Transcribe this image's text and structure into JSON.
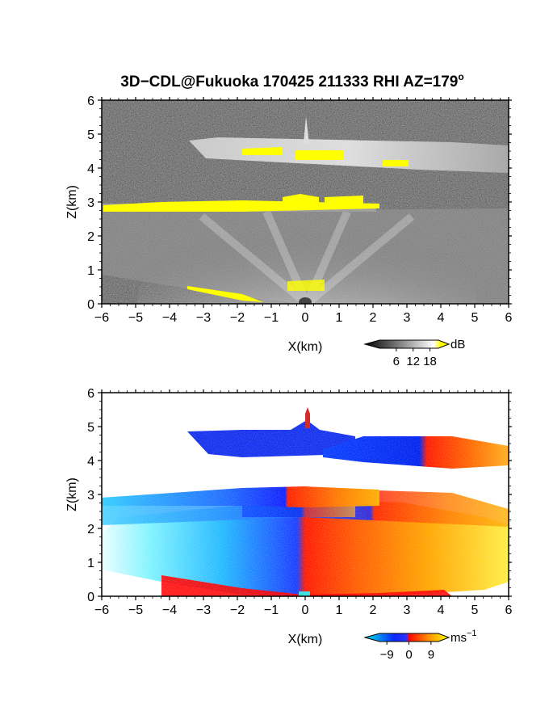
{
  "title": {
    "main": "3D−CDL@Fukuoka 170425 211333 RHI AZ=179",
    "degree": "o"
  },
  "chart_data": [
    {
      "type": "heatmap",
      "panel": "top",
      "xlabel": "X(km)",
      "ylabel": "Z(km)",
      "xlim": [
        -6,
        6
      ],
      "ylim": [
        0,
        6
      ],
      "x_ticks": [
        "−6",
        "−5",
        "−4",
        "−3",
        "−2",
        "−1",
        "0",
        "1",
        "2",
        "3",
        "4",
        "5",
        "6"
      ],
      "y_ticks": [
        "0",
        "1",
        "2",
        "3",
        "4",
        "5",
        "6"
      ],
      "colorbar": {
        "unit": "dB",
        "ticks": [
          "6",
          "12",
          "18"
        ],
        "range": [
          0,
          21
        ],
        "colors": [
          "#000000",
          "#ffffff",
          "#ffff00"
        ]
      },
      "layers": [
        {
          "x": [
            -3.4,
            3.2
          ],
          "z": [
            4.05,
            4.85
          ],
          "level_db": 12
        },
        {
          "x": [
            -6,
            2.1
          ],
          "z": [
            2.7,
            3.05
          ],
          "level_db": 19
        },
        {
          "x": [
            -6,
            6
          ],
          "z": [
            0.3,
            2.5
          ],
          "level_db": 9
        }
      ],
      "grid": false
    },
    {
      "type": "heatmap",
      "panel": "bottom",
      "xlabel": "X(km)",
      "ylabel": "Z(km)",
      "xlim": [
        -6,
        6
      ],
      "ylim": [
        0,
        6
      ],
      "x_ticks": [
        "−6",
        "−5",
        "−4",
        "−3",
        "−2",
        "−1",
        "0",
        "1",
        "2",
        "3",
        "4",
        "5",
        "6"
      ],
      "y_ticks": [
        "0",
        "1",
        "2",
        "3",
        "4",
        "5",
        "6"
      ],
      "colorbar": {
        "unit": "ms",
        "unit_exp": "−1",
        "ticks": [
          "−9",
          "0",
          "9"
        ],
        "range": [
          -12,
          12
        ],
        "colors": [
          "#00e5e5",
          "#0a28ff",
          "#ff0000",
          "#ffff00"
        ]
      },
      "layers": [
        {
          "x": [
            -3.4,
            1.5
          ],
          "z": [
            4.1,
            4.9
          ],
          "velocity_ms": -6
        },
        {
          "x": [
            1.5,
            6
          ],
          "z": [
            4.0,
            4.6
          ],
          "velocity_ms": 5
        },
        {
          "x": [
            -6,
            3.2
          ],
          "z": [
            2.55,
            3.1
          ],
          "velocity_ms": -4
        },
        {
          "x": [
            -6,
            6
          ],
          "z": [
            0.05,
            2.45
          ],
          "velocity_ms": 0
        }
      ],
      "grid": false
    }
  ]
}
